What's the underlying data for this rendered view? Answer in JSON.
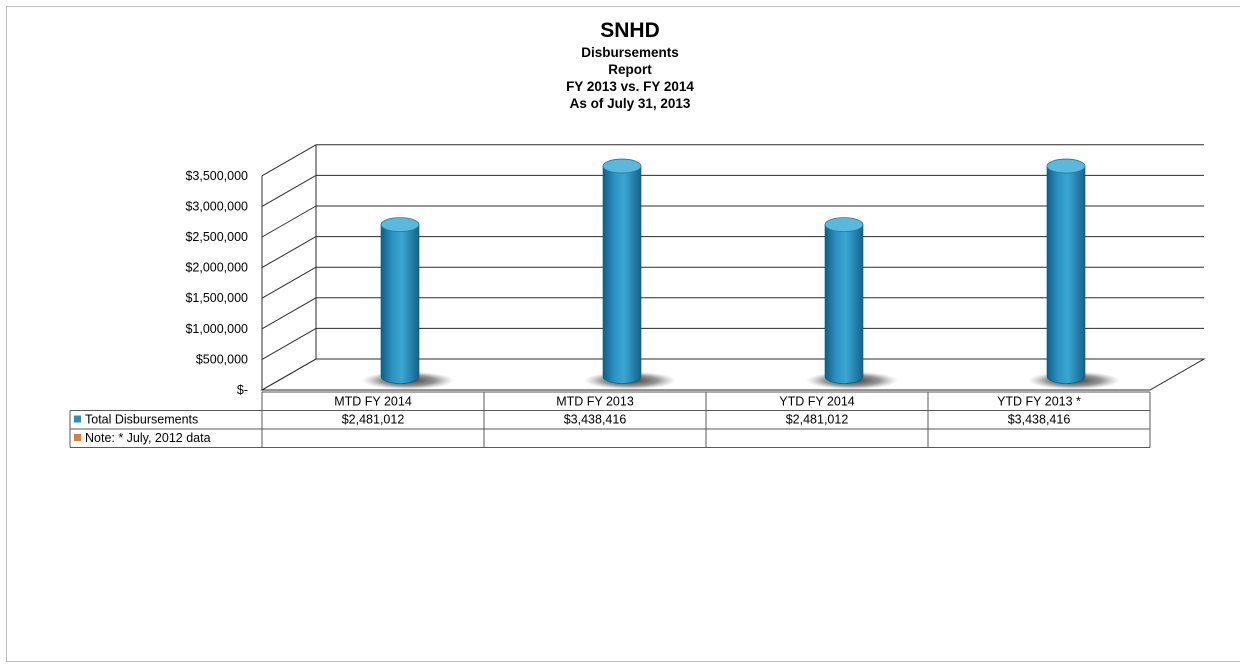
{
  "chart_data": {
    "type": "bar",
    "title": "SNHD",
    "subtitle": [
      "Disbursements",
      "Report",
      "FY 2013 vs. FY 2014",
      "As of July 31, 2013"
    ],
    "categories": [
      "MTD FY 2014",
      "MTD FY 2013",
      "YTD FY 2014",
      "YTD FY 2013 *"
    ],
    "series": [
      {
        "name": "Total Disbursements",
        "values": [
          2481012,
          3438416,
          2481012,
          3438416
        ],
        "labels": [
          "$2,481,012",
          "$3,438,416",
          "$2,481,012",
          "$3,438,416"
        ],
        "color": "#2a8fbd"
      },
      {
        "name": "Note: * July, 2012 data",
        "values": [
          null,
          null,
          null,
          null
        ],
        "labels": [
          "",
          "",
          "",
          ""
        ],
        "color": "#e07b39"
      }
    ],
    "y_ticks": [
      0,
      500000,
      1000000,
      1500000,
      2000000,
      2500000,
      3000000,
      3500000
    ],
    "y_tick_labels": [
      "$-",
      "$500,000",
      "$1,000,000",
      "$1,500,000",
      "$2,000,000",
      "$2,500,000",
      "$3,000,000",
      "$3,500,000"
    ],
    "ylim": [
      0,
      3500000
    ],
    "grid": true,
    "style": "3d-cylinder",
    "data_table": true
  }
}
